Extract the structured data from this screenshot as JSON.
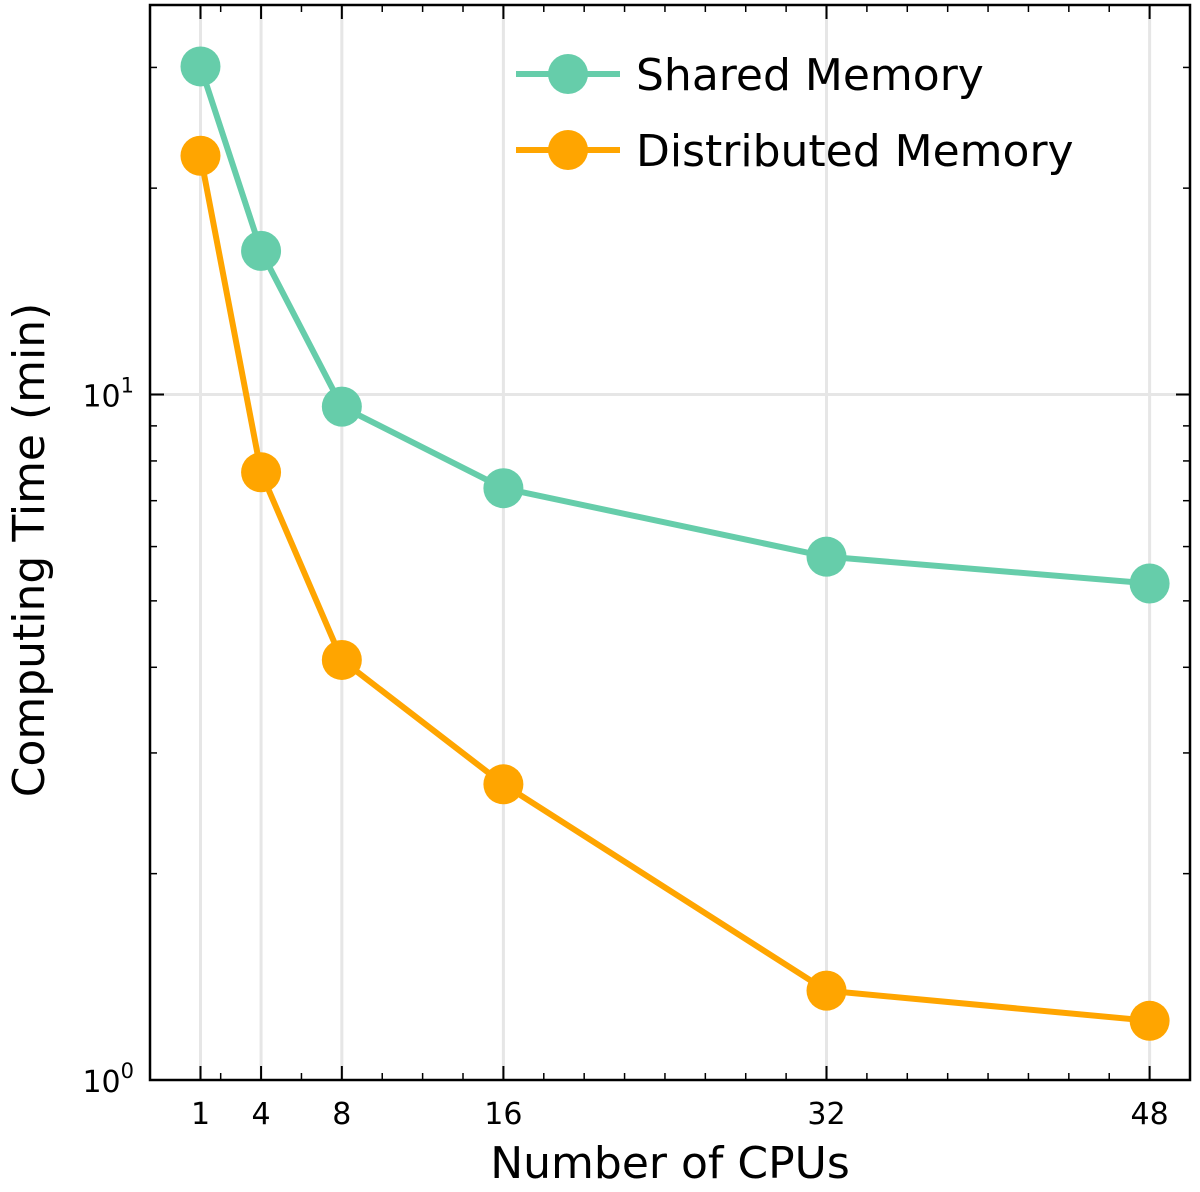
{
  "chart_data": {
    "type": "line",
    "title": "",
    "xlabel": "Number of CPUs",
    "ylabel": "Computing Time (min)",
    "x": [
      1,
      4,
      8,
      16,
      32,
      48
    ],
    "x_ticks": [
      1,
      4,
      8,
      16,
      32,
      48
    ],
    "x_tick_labels": [
      "1",
      "4",
      "8",
      "16",
      "32",
      "48"
    ],
    "xlim": [
      -1.5,
      50
    ],
    "y_scale": "log",
    "ylim": [
      1.0,
      37
    ],
    "y_tick_labels": [
      {
        "value": 1,
        "base": "10",
        "exp": "0"
      },
      {
        "value": 10,
        "base": "10",
        "exp": "1"
      }
    ],
    "grid": true,
    "legend_position": "top-right",
    "series": [
      {
        "name": "Shared Memory",
        "color": "#66cdaa",
        "values": [
          30.1,
          16.2,
          9.6,
          7.3,
          5.8,
          5.3
        ]
      },
      {
        "name": "Distributed Memory",
        "color": "#ffa500",
        "values": [
          22.3,
          7.7,
          4.1,
          2.7,
          1.35,
          1.22
        ]
      }
    ]
  }
}
